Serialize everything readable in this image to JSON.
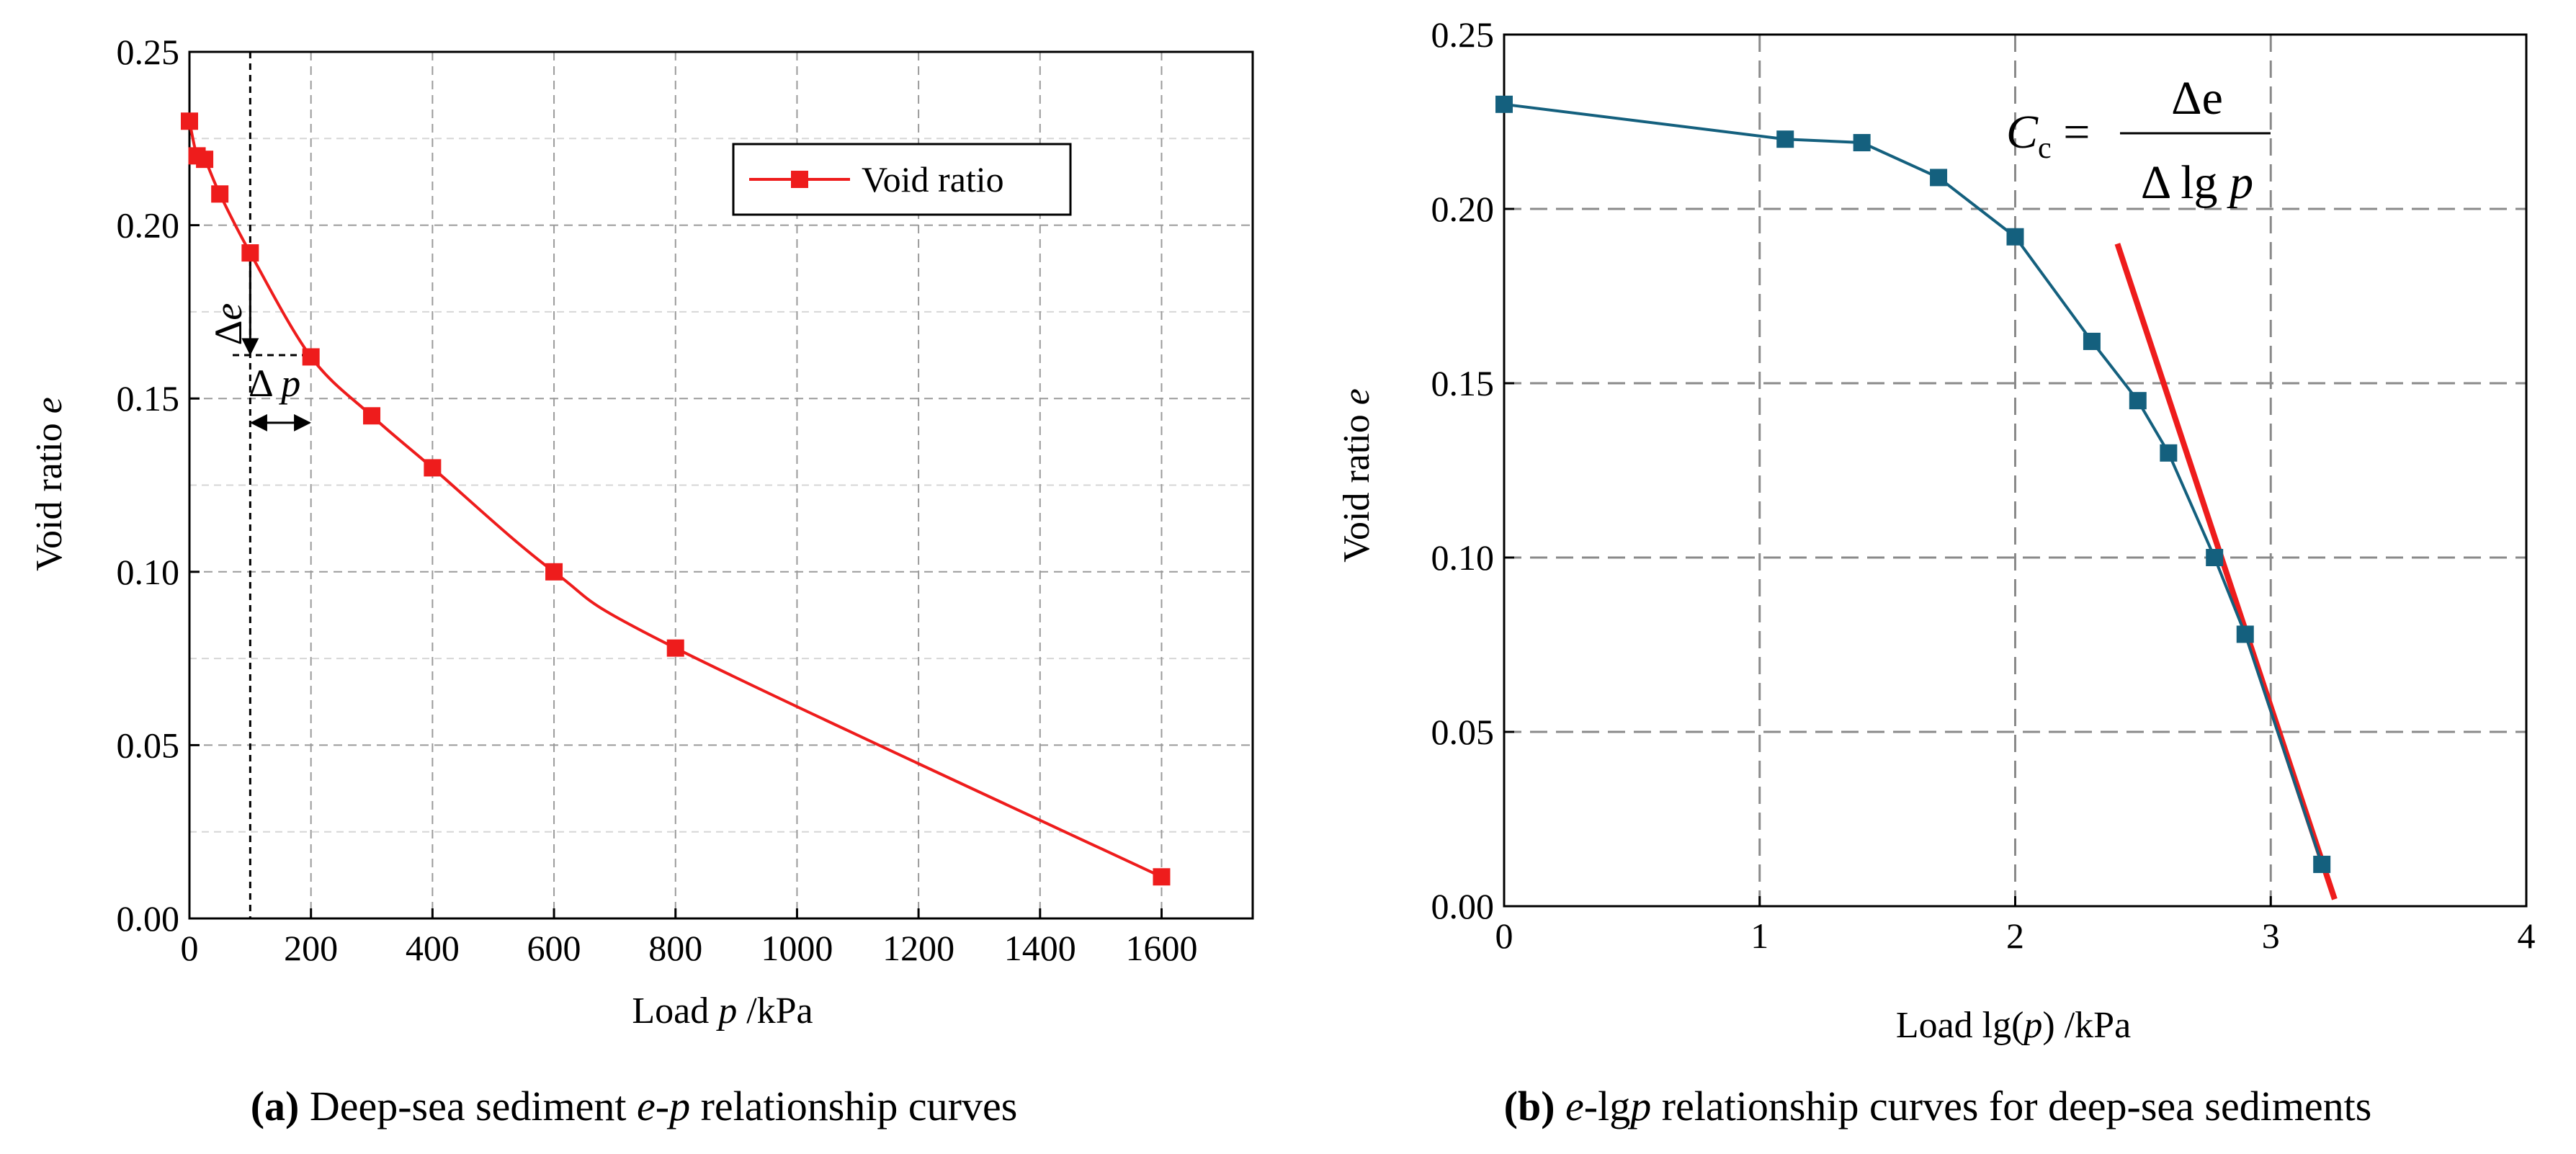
{
  "chart_data": [
    {
      "type": "line",
      "x": [
        0,
        12.5,
        25,
        50,
        100,
        200,
        300,
        400,
        600,
        800,
        1600
      ],
      "series": [
        {
          "name": "Void ratio",
          "values": [
            0.23,
            0.22,
            0.219,
            0.209,
            0.192,
            0.162,
            0.145,
            0.13,
            0.1,
            0.078,
            0.012
          ]
        }
      ],
      "xlabel": {
        "pre": "Load ",
        "var": "p",
        "post": " /kPa"
      },
      "ylabel": {
        "pre": "Void ratio  ",
        "var": "e"
      },
      "xlim": [
        0,
        1750
      ],
      "ylim": [
        0,
        0.25
      ],
      "xticks": [
        0,
        200,
        400,
        600,
        800,
        1000,
        1200,
        1400,
        1600
      ],
      "yticks": [
        0.0,
        0.05,
        0.1,
        0.15,
        0.2,
        0.25
      ],
      "grid": true,
      "legend_position": "top-right",
      "color": "#ee1c1c",
      "annotations": {
        "delta_e": {
          "sym": "Δ",
          "var": "e"
        },
        "delta_p": {
          "sym": "Δ ",
          "var": "p"
        },
        "guide_x": 100,
        "guide_y": 0.1625,
        "arrow_e": [
          0.192,
          0.1625
        ],
        "arrow_p": [
          100,
          200
        ]
      },
      "caption": {
        "label": "(a)",
        "pre": " Deep-sea sediment ",
        "var": "e-p",
        "post": " relationship curves"
      }
    },
    {
      "type": "line",
      "x": [
        0,
        1.1,
        1.4,
        1.7,
        2.0,
        2.3,
        2.48,
        2.6,
        2.78,
        2.9,
        3.2
      ],
      "series": [
        {
          "values": [
            0.23,
            0.22,
            0.219,
            0.209,
            0.192,
            0.162,
            0.145,
            0.13,
            0.1,
            0.078,
            0.012
          ]
        }
      ],
      "fit_line": {
        "x": [
          2.4,
          3.25
        ],
        "y": [
          0.19,
          0.002
        ],
        "color": "#ee1c1c"
      },
      "xlabel": {
        "pre": "Load lg(",
        "var": "p",
        "post": ") /kPa"
      },
      "ylabel": {
        "pre": "Void ratio  ",
        "var": "e"
      },
      "xlim": [
        0,
        4
      ],
      "ylim": [
        0,
        0.25
      ],
      "xticks": [
        0,
        1,
        2,
        3,
        4
      ],
      "yticks": [
        0.0,
        0.05,
        0.1,
        0.15,
        0.2,
        0.25
      ],
      "grid": true,
      "color": "#14607e",
      "formula": {
        "lhs": "C",
        "sub": "c",
        "eq": " = ",
        "num": "Δe",
        "den_pre": "Δ lg ",
        "den_var": "p"
      },
      "caption": {
        "label": "(b)",
        "pre": " ",
        "var": "e",
        "mid": "-lg",
        "var2": "p",
        "post": " relationship curves for deep-sea sediments"
      }
    }
  ]
}
